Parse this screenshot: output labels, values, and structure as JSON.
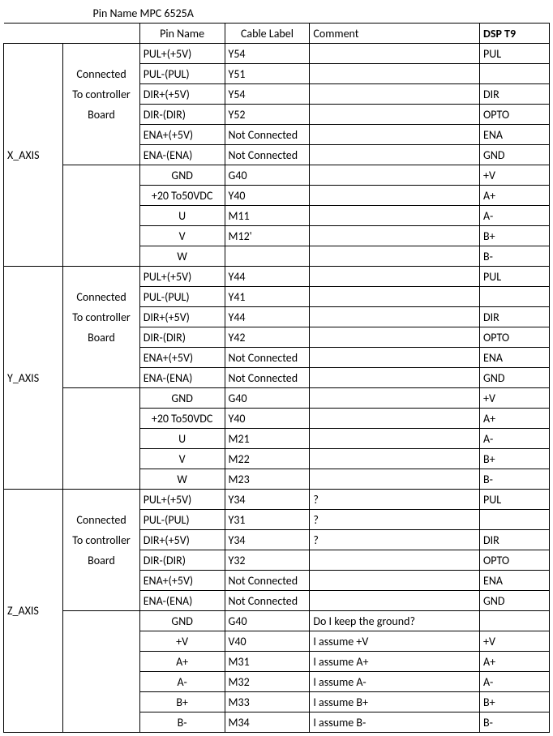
{
  "title": "Pin Name MPC 6525A",
  "headers": {
    "pin": "Pin Name",
    "cable": "Cable Label",
    "comment": "Comment",
    "dsp": "DSP T9"
  },
  "conn_lines": [
    "Connected",
    "To controller",
    "Board"
  ],
  "axes": {
    "x": {
      "label": "X_AXIS",
      "top": [
        {
          "pin": "PUL+(+5V)",
          "cab": "Y54",
          "com": "",
          "dsp": "PUL"
        },
        {
          "pin": "PUL-(PUL)",
          "cab": "Y51",
          "com": "",
          "dsp": ""
        },
        {
          "pin": "DIR+(+5V)",
          "cab": "Y54",
          "com": "",
          "dsp": "DIR"
        },
        {
          "pin": "DIR-(DIR)",
          "cab": "Y52",
          "com": "",
          "dsp": "OPTO"
        },
        {
          "pin": "ENA+(+5V)",
          "cab": "Not Connected",
          "com": "",
          "dsp": "ENA"
        },
        {
          "pin": "ENA-(ENA)",
          "cab": "Not Connected",
          "com": "",
          "dsp": "GND"
        }
      ],
      "bot": [
        {
          "pin": "GND",
          "cab": "G40",
          "com": "",
          "dsp": "+V"
        },
        {
          "pin": "+20 To50VDC",
          "cab": "Y40",
          "com": "",
          "dsp": "A+"
        },
        {
          "pin": "U",
          "cab": "M11",
          "com": "",
          "dsp": "A-"
        },
        {
          "pin": "V",
          "cab": "M12'",
          "com": "",
          "dsp": "B+"
        },
        {
          "pin": "W",
          "cab": "",
          "com": "",
          "dsp": "B-"
        }
      ]
    },
    "y": {
      "label": "Y_AXIS",
      "top": [
        {
          "pin": "PUL+(+5V)",
          "cab": "Y44",
          "com": "",
          "dsp": "PUL"
        },
        {
          "pin": "PUL-(PUL)",
          "cab": "Y41",
          "com": "",
          "dsp": ""
        },
        {
          "pin": "DIR+(+5V)",
          "cab": "Y44",
          "com": "",
          "dsp": "DIR"
        },
        {
          "pin": "DIR-(DIR)",
          "cab": "Y42",
          "com": "",
          "dsp": "OPTO"
        },
        {
          "pin": "ENA+(+5V)",
          "cab": "Not Connected",
          "com": "",
          "dsp": "ENA"
        },
        {
          "pin": "ENA-(ENA)",
          "cab": "Not Connected",
          "com": "",
          "dsp": "GND"
        }
      ],
      "bot": [
        {
          "pin": "GND",
          "cab": "G40",
          "com": "",
          "dsp": "+V"
        },
        {
          "pin": "+20 To50VDC",
          "cab": "Y40",
          "com": "",
          "dsp": "A+"
        },
        {
          "pin": "U",
          "cab": "M21",
          "com": "",
          "dsp": "A-"
        },
        {
          "pin": "V",
          "cab": "M22",
          "com": "",
          "dsp": "B+"
        },
        {
          "pin": "W",
          "cab": "M23",
          "com": "",
          "dsp": "B-"
        }
      ]
    },
    "z": {
      "label": "Z_AXIS",
      "top": [
        {
          "pin": "PUL+(+5V)",
          "cab": "Y34",
          "com": "?",
          "dsp": "PUL"
        },
        {
          "pin": "PUL-(PUL)",
          "cab": "Y31",
          "com": "?",
          "dsp": ""
        },
        {
          "pin": "DIR+(+5V)",
          "cab": "Y34",
          "com": "?",
          "dsp": "DIR"
        },
        {
          "pin": "DIR-(DIR)",
          "cab": "Y32",
          "com": "",
          "dsp": "OPTO"
        },
        {
          "pin": "ENA+(+5V)",
          "cab": "Not Connected",
          "com": "",
          "dsp": "ENA"
        },
        {
          "pin": "ENA-(ENA)",
          "cab": "Not Connected",
          "com": "",
          "dsp": "GND"
        }
      ],
      "bot": [
        {
          "pin": "GND",
          "cab": "G40",
          "com": "Do I keep the ground?",
          "dsp": ""
        },
        {
          "pin": "+V",
          "cab": "V40",
          "com": "I assume +V",
          "dsp": "+V"
        },
        {
          "pin": "A+",
          "cab": "M31",
          "com": "I assume A+",
          "dsp": "A+"
        },
        {
          "pin": "A-",
          "cab": "M32",
          "com": "I assume A-",
          "dsp": "A-"
        },
        {
          "pin": "B+",
          "cab": "M33",
          "com": "I assume B+",
          "dsp": "B+"
        },
        {
          "pin": "B-",
          "cab": "M34",
          "com": "I assume B-",
          "dsp": "B-"
        }
      ]
    }
  }
}
